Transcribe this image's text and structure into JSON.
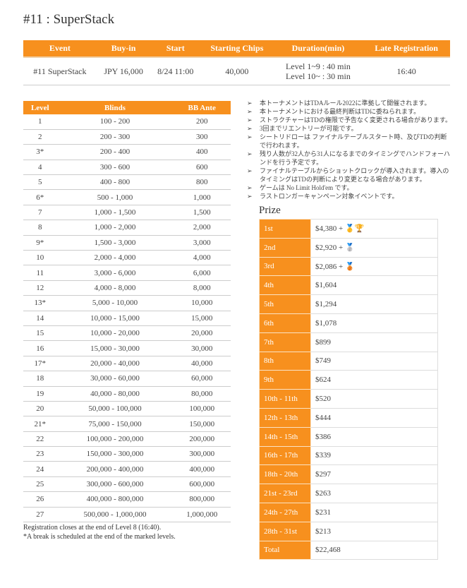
{
  "title": "#11 : SuperStack",
  "event_table": {
    "headers": [
      "Event",
      "Buy-in",
      "Start",
      "Starting Chips",
      "Duration(min)",
      "Late Registration"
    ],
    "row": {
      "event": "#11 SuperStack",
      "buyin": "JPY 16,000",
      "start": "8/24 11:00",
      "chips": "40,000",
      "duration1": "Level 1~9 : 40 min",
      "duration2": "Level 10~ : 30 min",
      "late": "16:40"
    }
  },
  "levels": {
    "headers": [
      "Level",
      "Blinds",
      "BB Ante"
    ],
    "rows": [
      [
        "1",
        "100 - 200",
        "200"
      ],
      [
        "2",
        "200 - 300",
        "300"
      ],
      [
        "3*",
        "200 - 400",
        "400"
      ],
      [
        "4",
        "300 - 600",
        "600"
      ],
      [
        "5",
        "400 - 800",
        "800"
      ],
      [
        "6*",
        "500 - 1,000",
        "1,000"
      ],
      [
        "7",
        "1,000 - 1,500",
        "1,500"
      ],
      [
        "8",
        "1,000 - 2,000",
        "2,000"
      ],
      [
        "9*",
        "1,500 - 3,000",
        "3,000"
      ],
      [
        "10",
        "2,000 - 4,000",
        "4,000"
      ],
      [
        "11",
        "3,000 - 6,000",
        "6,000"
      ],
      [
        "12",
        "4,000 - 8,000",
        "8,000"
      ],
      [
        "13*",
        "5,000 - 10,000",
        "10,000"
      ],
      [
        "14",
        "10,000 - 15,000",
        "15,000"
      ],
      [
        "15",
        "10,000 - 20,000",
        "20,000"
      ],
      [
        "16",
        "15,000 - 30,000",
        "30,000"
      ],
      [
        "17*",
        "20,000 - 40,000",
        "40,000"
      ],
      [
        "18",
        "30,000 - 60,000",
        "60,000"
      ],
      [
        "19",
        "40,000 - 80,000",
        "80,000"
      ],
      [
        "20",
        "50,000 - 100,000",
        "100,000"
      ],
      [
        "21*",
        "75,000 - 150,000",
        "150,000"
      ],
      [
        "22",
        "100,000 - 200,000",
        "200,000"
      ],
      [
        "23",
        "150,000 - 300,000",
        "300,000"
      ],
      [
        "24",
        "200,000 - 400,000",
        "400,000"
      ],
      [
        "25",
        "300,000 - 600,000",
        "600,000"
      ],
      [
        "26",
        "400,000 - 800,000",
        "800,000"
      ],
      [
        "27",
        "500,000 - 1,000,000",
        "1,000,000"
      ]
    ]
  },
  "footnotes": [
    "Registration closes at the end of Level 8 (16:40).",
    "*A break is scheduled at the end of the marked levels."
  ],
  "notes": [
    "本トーナメントはTDAルール2022に準拠して開催されます。",
    "本トーナメントにおける最終判断はTDに委ねられます。",
    "ストラクチャーはTDの権限で予告なく変更される場合があります。",
    "3回までリエントリーが可能です。",
    "シートリドローは ファイナルテーブルスタート時、及びTDの判断で行われます。",
    "残り人数が32人から31人になるまでのタイミングでハンドフォーハンドを行う予定です。",
    "ファイナルテーブルからショットクロックが導入されます。導入のタイミングはTDの判断により変更となる場合があります。",
    "ゲームは No Limit Hold'em です。",
    "ラストロンガーキャンペーン対象イベントです。"
  ],
  "prize": {
    "title": "Prize",
    "rows": [
      [
        "1st",
        "$4,380 + 🥇🏆"
      ],
      [
        "2nd",
        "$2,920 + 🥈"
      ],
      [
        "3rd",
        "$2,086 + 🥉"
      ],
      [
        "4th",
        "$1,604"
      ],
      [
        "5th",
        "$1,294"
      ],
      [
        "6th",
        "$1,078"
      ],
      [
        "7th",
        "$899"
      ],
      [
        "8th",
        "$749"
      ],
      [
        "9th",
        "$624"
      ],
      [
        "10th - 11th",
        "$520"
      ],
      [
        "12th - 13th",
        "$444"
      ],
      [
        "14th - 15th",
        "$386"
      ],
      [
        "16th - 17th",
        "$339"
      ],
      [
        "18th - 20th",
        "$297"
      ],
      [
        "21st - 23rd",
        "$263"
      ],
      [
        "24th - 27th",
        "$231"
      ],
      [
        "28th - 31st",
        "$213"
      ],
      [
        "Total",
        "$22,468"
      ]
    ]
  },
  "colors": {
    "accent": "#f7901e"
  }
}
